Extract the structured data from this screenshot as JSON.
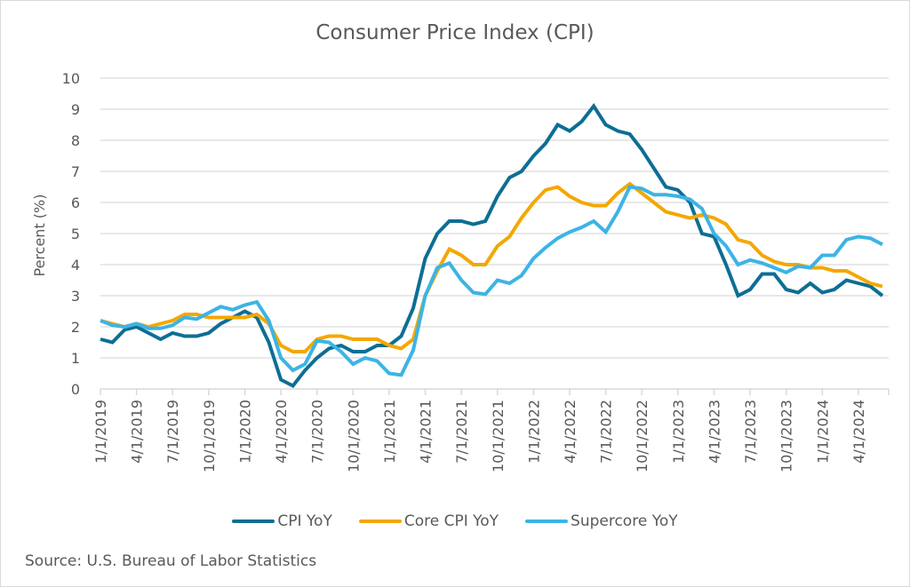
{
  "chart_data": {
    "type": "line",
    "title": "Consumer Price Index (CPI)",
    "xlabel": "",
    "ylabel": "Percent (%)",
    "ylim": [
      0,
      10
    ],
    "yticks": [
      0,
      1,
      2,
      3,
      4,
      5,
      6,
      7,
      8,
      9,
      10
    ],
    "grid": true,
    "legend_position": "bottom",
    "x_start": "1/1/2019",
    "x_frequency": "monthly",
    "x_tick_labels": [
      "1/1/2019",
      "4/1/2019",
      "7/1/2019",
      "10/1/2019",
      "1/1/2020",
      "4/1/2020",
      "7/1/2020",
      "10/1/2020",
      "1/1/2021",
      "4/1/2021",
      "7/1/2021",
      "10/1/2021",
      "1/1/2022",
      "4/1/2022",
      "7/1/2022",
      "10/1/2022",
      "1/1/2023",
      "4/1/2023",
      "7/1/2023",
      "10/1/2023",
      "1/1/2024",
      "4/1/2024"
    ],
    "series": [
      {
        "name": "CPI YoY",
        "color": "#0e6e94",
        "values": [
          1.6,
          1.5,
          1.9,
          2.0,
          1.8,
          1.6,
          1.8,
          1.7,
          1.7,
          1.8,
          2.1,
          2.3,
          2.5,
          2.3,
          1.5,
          0.3,
          0.1,
          0.6,
          1.0,
          1.3,
          1.4,
          1.2,
          1.2,
          1.4,
          1.4,
          1.7,
          2.6,
          4.2,
          5.0,
          5.4,
          5.4,
          5.3,
          5.4,
          6.2,
          6.8,
          7.0,
          7.5,
          7.9,
          8.5,
          8.3,
          8.6,
          9.1,
          8.5,
          8.3,
          8.2,
          7.7,
          7.1,
          6.5,
          6.4,
          6.0,
          5.0,
          4.9,
          4.0,
          3.0,
          3.2,
          3.7,
          3.7,
          3.2,
          3.1,
          3.4,
          3.1,
          3.2,
          3.5,
          3.4,
          3.3,
          3.0
        ]
      },
      {
        "name": "Core CPI YoY",
        "color": "#f4a700",
        "values": [
          2.2,
          2.1,
          2.0,
          2.1,
          2.0,
          2.1,
          2.2,
          2.4,
          2.4,
          2.3,
          2.3,
          2.3,
          2.3,
          2.4,
          2.1,
          1.4,
          1.2,
          1.2,
          1.6,
          1.7,
          1.7,
          1.6,
          1.6,
          1.6,
          1.4,
          1.3,
          1.6,
          3.0,
          3.8,
          4.5,
          4.3,
          4.0,
          4.0,
          4.6,
          4.9,
          5.5,
          6.0,
          6.4,
          6.5,
          6.2,
          6.0,
          5.9,
          5.9,
          6.3,
          6.6,
          6.3,
          6.0,
          5.7,
          5.6,
          5.5,
          5.6,
          5.5,
          5.3,
          4.8,
          4.7,
          4.3,
          4.1,
          4.0,
          4.0,
          3.9,
          3.9,
          3.8,
          3.8,
          3.6,
          3.4,
          3.3
        ]
      },
      {
        "name": "Supercore YoY",
        "color": "#3cb4e5",
        "values": [
          2.2,
          2.05,
          2.0,
          2.1,
          1.95,
          1.95,
          2.05,
          2.3,
          2.25,
          2.45,
          2.65,
          2.55,
          2.7,
          2.8,
          2.2,
          1.0,
          0.6,
          0.8,
          1.55,
          1.5,
          1.2,
          0.8,
          1.0,
          0.9,
          0.5,
          0.45,
          1.25,
          3.0,
          3.9,
          4.05,
          3.5,
          3.1,
          3.05,
          3.5,
          3.4,
          3.65,
          4.2,
          4.55,
          4.85,
          5.05,
          5.2,
          5.4,
          5.05,
          5.7,
          6.5,
          6.45,
          6.25,
          6.25,
          6.2,
          6.1,
          5.8,
          5.0,
          4.6,
          4.0,
          4.15,
          4.05,
          3.9,
          3.75,
          3.95,
          3.9,
          4.3,
          4.3,
          4.8,
          4.9,
          4.85,
          4.65
        ]
      }
    ]
  },
  "source": "Source: U.S. Bureau of Labor Statistics"
}
